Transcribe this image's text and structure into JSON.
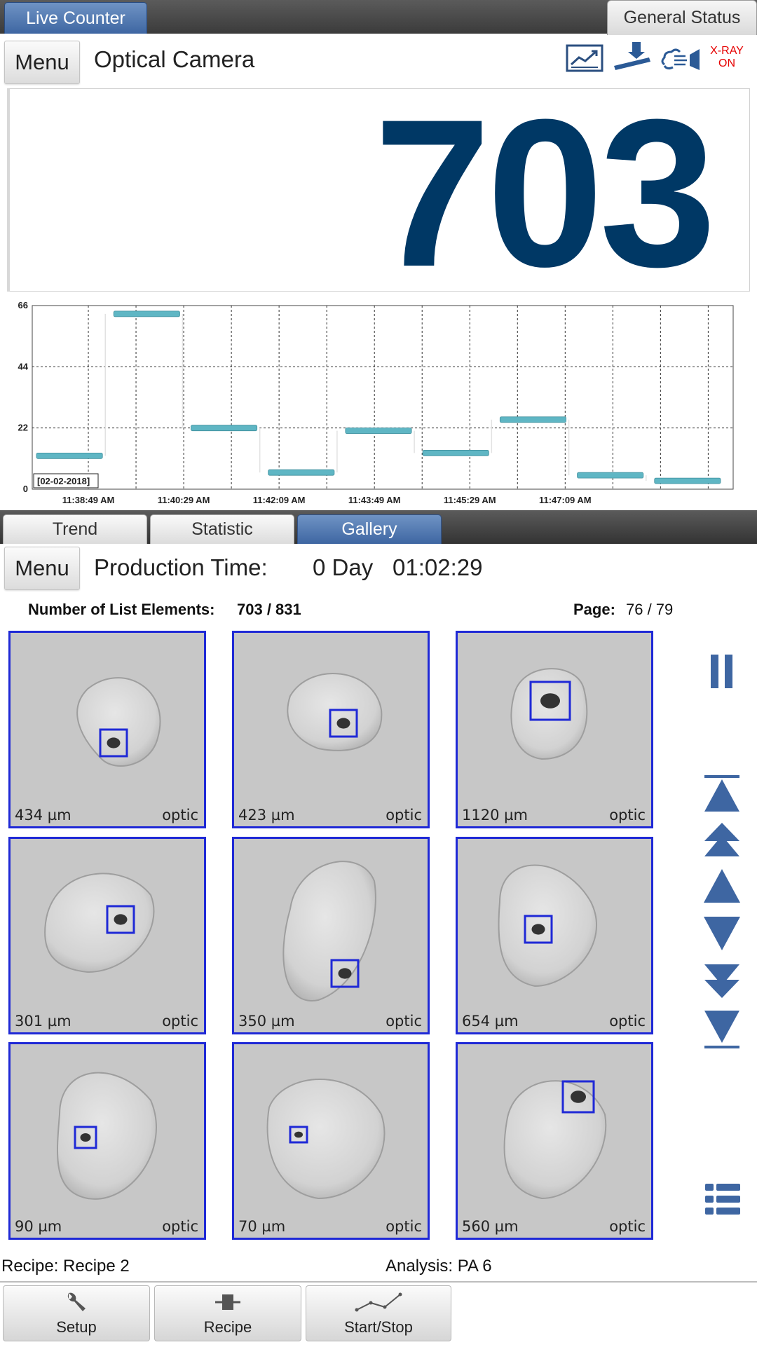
{
  "top_tabs": {
    "live_counter": "Live Counter",
    "general_status": "General Status"
  },
  "header": {
    "menu_label": "Menu",
    "title": "Optical Camera",
    "status_icons": [
      "trend-report-icon",
      "conveyor-icon",
      "air-blast-icon"
    ],
    "xray_line1": "X-RAY",
    "xray_line2": "ON",
    "xray_color": "#e60000"
  },
  "counter": {
    "value": "703",
    "color": "#003865"
  },
  "chart_data": {
    "type": "bar",
    "ylim": [
      0,
      66
    ],
    "yticks": [
      "0",
      "22",
      "44",
      "66"
    ],
    "x_ticks": [
      "11:38:49 AM",
      "11:40:29 AM",
      "11:42:09 AM",
      "11:43:49 AM",
      "11:45:29 AM",
      "11:47:09 AM"
    ],
    "date_label": "[02-02-2018]",
    "values": [
      12,
      63,
      22,
      6,
      21,
      13,
      25,
      5,
      3
    ],
    "grid": true,
    "bar_color": "#5fb6c4"
  },
  "mid_tabs": {
    "trend": "Trend",
    "statistic": "Statistic",
    "gallery": "Gallery"
  },
  "production": {
    "menu_label": "Menu",
    "label": "Production Time:",
    "days": "0 Day",
    "time": "01:02:29"
  },
  "list_info": {
    "elements_label": "Number of List Elements:",
    "elements_value": "703 / 831",
    "page_label": "Page:",
    "page_value": "76 / 79"
  },
  "gallery": [
    {
      "size": "434 µm",
      "source": "optic"
    },
    {
      "size": "423 µm",
      "source": "optic"
    },
    {
      "size": "1120 µm",
      "source": "optic"
    },
    {
      "size": "301 µm",
      "source": "optic"
    },
    {
      "size": "350 µm",
      "source": "optic"
    },
    {
      "size": "654 µm",
      "source": "optic"
    },
    {
      "size": "90 µm",
      "source": "optic"
    },
    {
      "size": "70 µm",
      "source": "optic"
    },
    {
      "size": "560 µm",
      "source": "optic"
    }
  ],
  "nav_icons": [
    "pause-icon",
    "first-page-icon",
    "page-up-fast-icon",
    "page-up-icon",
    "page-down-icon",
    "page-down-fast-icon",
    "last-page-icon",
    "list-view-icon"
  ],
  "footer": {
    "recipe_label": "Recipe: Recipe 2",
    "analysis_label": "Analysis: PA 6"
  },
  "toolbar": {
    "setup": "Setup",
    "recipe": "Recipe",
    "start_stop": "Start/Stop"
  },
  "accent_color": "#3e66a2"
}
